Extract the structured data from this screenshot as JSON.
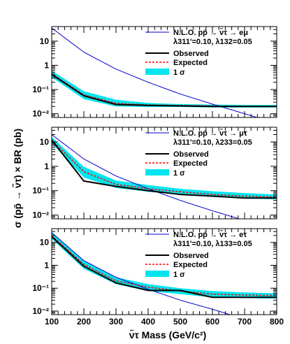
{
  "chart_data": {
    "type": "line",
    "xlabel": "ν̃τ Mass (GeV/c²)",
    "ylabel": "σ (pp̄ → ν̃τ) × BR (pb)",
    "x_ticks": [
      "100",
      "200",
      "300",
      "400",
      "500",
      "600",
      "700",
      "800"
    ],
    "y_ticks": [
      "10⁻²",
      "10⁻¹",
      "1",
      "10"
    ],
    "xlim": [
      100,
      800
    ],
    "y_scale": "log",
    "ylim": [
      0.007,
      40
    ],
    "grid": false,
    "legend_placement": "top-right",
    "legend_entries": {
      "observed": "Observed",
      "expected": "Expected",
      "band": "1 σ"
    },
    "colors": {
      "theory": "#0000cc",
      "observed": "#000000",
      "expected": "#ff0000",
      "band": "#00e5ee"
    },
    "panels": [
      {
        "theory_label": "N.L.O. pp̄ → ν̃τ → eμ",
        "coupling_label": "λ311'=0.10, λ132=0.05",
        "theory": {
          "x": [
            100,
            200,
            300,
            400,
            500,
            600,
            700,
            800
          ],
          "y": [
            35,
            3.5,
            0.7,
            0.2,
            0.065,
            0.025,
            0.01,
            0.004
          ]
        },
        "observed": {
          "x": [
            100,
            200,
            300,
            400,
            500,
            600,
            700,
            800
          ],
          "y": [
            0.42,
            0.055,
            0.024,
            0.022,
            0.021,
            0.02,
            0.02,
            0.02
          ]
        },
        "expected": {
          "x": [
            100,
            200,
            300,
            400,
            500,
            600,
            700,
            800
          ],
          "y": [
            0.45,
            0.06,
            0.027,
            0.023,
            0.022,
            0.021,
            0.02,
            0.02
          ]
        },
        "band_low": [
          0.32,
          0.04,
          0.02,
          0.019,
          0.019,
          0.018,
          0.018,
          0.018
        ],
        "band_high": [
          0.6,
          0.085,
          0.038,
          0.028,
          0.025,
          0.024,
          0.023,
          0.023
        ]
      },
      {
        "theory_label": "N.L.O. pp̄ → ν̃τ → μτ",
        "coupling_label": "λ311'=0.10, λ233=0.05",
        "theory": {
          "x": [
            100,
            200,
            300,
            400,
            500,
            600,
            700,
            800
          ],
          "y": [
            20,
            2.0,
            0.4,
            0.12,
            0.04,
            0.015,
            0.006,
            0.0025
          ]
        },
        "observed": {
          "x": [
            100,
            200,
            300,
            400,
            500,
            600,
            700,
            800
          ],
          "y": [
            12,
            0.25,
            0.15,
            0.1,
            0.07,
            0.06,
            0.05,
            0.05
          ]
        },
        "expected": {
          "x": [
            100,
            200,
            300,
            400,
            500,
            600,
            700,
            800
          ],
          "y": [
            12,
            0.6,
            0.18,
            0.12,
            0.09,
            0.07,
            0.06,
            0.055
          ]
        },
        "band_low": [
          9,
          0.35,
          0.13,
          0.09,
          0.07,
          0.055,
          0.048,
          0.044
        ],
        "band_high": [
          16,
          0.95,
          0.26,
          0.17,
          0.12,
          0.095,
          0.08,
          0.07
        ]
      },
      {
        "theory_label": "N.L.O. pp̄ → ν̃τ → eτ",
        "coupling_label": "λ311'=0.10, λ133=0.05",
        "theory": {
          "x": [
            100,
            200,
            300,
            400,
            500,
            600,
            700,
            800
          ],
          "y": [
            27,
            1.6,
            0.3,
            0.09,
            0.03,
            0.012,
            0.0045,
            0.0018
          ]
        },
        "observed": {
          "x": [
            100,
            200,
            300,
            400,
            500,
            600,
            700,
            800
          ],
          "y": [
            18,
            0.9,
            0.17,
            0.08,
            0.08,
            0.04,
            0.04,
            0.04
          ]
        },
        "expected": {
          "x": [
            100,
            200,
            300,
            400,
            500,
            600,
            700,
            800
          ],
          "y": [
            20,
            1.1,
            0.21,
            0.11,
            0.075,
            0.055,
            0.05,
            0.048
          ]
        },
        "band_low": [
          14,
          0.7,
          0.15,
          0.075,
          0.055,
          0.04,
          0.037,
          0.035
        ],
        "band_high": [
          28,
          1.6,
          0.3,
          0.15,
          0.1,
          0.075,
          0.065,
          0.06
        ]
      }
    ]
  }
}
